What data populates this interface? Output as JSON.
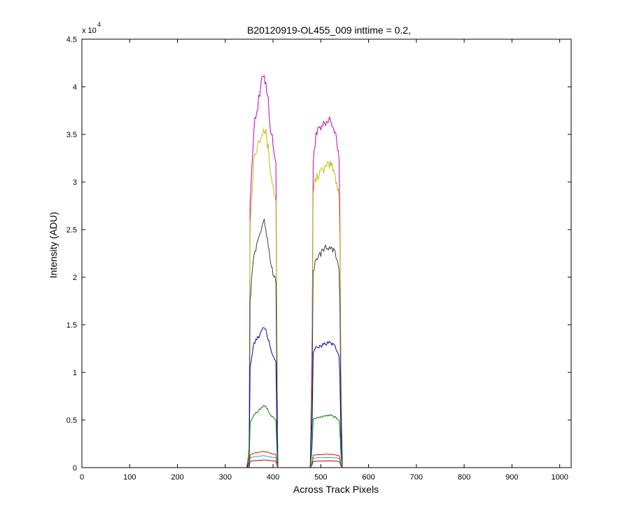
{
  "chart_data": {
    "type": "line",
    "title": "B20120919-OL455_009 inttime = 0.2,",
    "xlabel": "Across Track Pixels",
    "ylabel": "Intensity (ADU)",
    "xlim": [
      0,
      1024
    ],
    "ylim": [
      0,
      45000
    ],
    "y_multiplier_base": "x 10",
    "y_multiplier_exp": "4",
    "x_ticks": [
      0,
      100,
      200,
      300,
      400,
      500,
      600,
      700,
      800,
      900,
      1000
    ],
    "x_tick_labels": [
      "0",
      "100",
      "200",
      "300",
      "400",
      "500",
      "600",
      "700",
      "800",
      "900",
      "1000"
    ],
    "y_ticks": [
      0,
      5000,
      10000,
      15000,
      20000,
      25000,
      30000,
      35000,
      40000,
      45000
    ],
    "y_tick_labels": [
      "0",
      "0.5",
      "1",
      "1.5",
      "2",
      "2.5",
      "3",
      "3.5",
      "4",
      "4.5"
    ],
    "grid": false,
    "legend": "none",
    "series": [
      {
        "color": "#bf00bf",
        "x": [
          0,
          320,
          345,
          350,
          352,
          355,
          360,
          370,
          380,
          385,
          390,
          395,
          400,
          406,
          408,
          410,
          415,
          478,
          482,
          484,
          486,
          490,
          500,
          510,
          520,
          525,
          530,
          535,
          538,
          540,
          542,
          545,
          560,
          1024
        ],
        "y": [
          0,
          0,
          0,
          2000,
          28000,
          30500,
          36000,
          38500,
          41500,
          40500,
          38500,
          35500,
          34000,
          32000,
          14000,
          0,
          0,
          0,
          15000,
          32000,
          33500,
          35000,
          35500,
          36000,
          36500,
          36000,
          35000,
          33500,
          33000,
          26000,
          10000,
          0,
          0,
          0
        ]
      },
      {
        "color": "#bfbf00",
        "x": [
          0,
          320,
          345,
          350,
          352,
          355,
          360,
          370,
          380,
          385,
          390,
          395,
          400,
          406,
          408,
          410,
          415,
          478,
          482,
          484,
          486,
          490,
          500,
          510,
          520,
          525,
          530,
          535,
          538,
          540,
          542,
          545,
          560,
          1024
        ],
        "y": [
          0,
          0,
          0,
          1800,
          25500,
          28000,
          32500,
          34500,
          35800,
          35000,
          33500,
          31000,
          29500,
          28000,
          12500,
          0,
          0,
          0,
          13000,
          29000,
          29500,
          30500,
          31000,
          31500,
          31800,
          31500,
          30500,
          29500,
          29000,
          23500,
          9000,
          0,
          0,
          0
        ]
      },
      {
        "color": "#404040",
        "x": [
          0,
          320,
          345,
          350,
          352,
          355,
          360,
          370,
          380,
          385,
          390,
          395,
          400,
          406,
          408,
          410,
          415,
          478,
          482,
          484,
          486,
          490,
          500,
          510,
          520,
          525,
          530,
          535,
          538,
          540,
          542,
          545,
          560,
          1024
        ],
        "y": [
          0,
          0,
          0,
          1200,
          17500,
          19500,
          22500,
          24000,
          26000,
          25000,
          23500,
          21500,
          20500,
          19500,
          8500,
          0,
          0,
          0,
          9500,
          20500,
          21000,
          22000,
          22500,
          23000,
          23200,
          23000,
          22500,
          21500,
          21000,
          17000,
          6500,
          0,
          0,
          0
        ]
      },
      {
        "color": "#0000bf",
        "x": [
          0,
          320,
          345,
          350,
          352,
          355,
          360,
          370,
          380,
          385,
          390,
          395,
          400,
          406,
          408,
          410,
          415,
          478,
          482,
          484,
          486,
          490,
          500,
          510,
          520,
          525,
          530,
          535,
          538,
          540,
          542,
          545,
          560,
          1024
        ],
        "y": [
          0,
          0,
          0,
          600,
          10500,
          11500,
          13000,
          13800,
          14700,
          14300,
          13500,
          12500,
          11800,
          11200,
          4800,
          0,
          0,
          0,
          5200,
          12000,
          12300,
          12600,
          12800,
          13000,
          13100,
          12900,
          12600,
          12100,
          11800,
          9500,
          3500,
          0,
          0,
          0
        ]
      },
      {
        "color": "#008000",
        "x": [
          0,
          320,
          345,
          350,
          352,
          355,
          360,
          370,
          380,
          385,
          390,
          395,
          400,
          406,
          408,
          410,
          415,
          478,
          482,
          484,
          486,
          490,
          500,
          510,
          520,
          525,
          530,
          535,
          538,
          540,
          542,
          545,
          560,
          1024
        ],
        "y": [
          0,
          0,
          0,
          300,
          4700,
          5000,
          5600,
          6000,
          6500,
          6400,
          6000,
          5500,
          5300,
          5000,
          2200,
          0,
          0,
          0,
          2300,
          5000,
          5100,
          5200,
          5300,
          5400,
          5500,
          5400,
          5300,
          5100,
          5000,
          4000,
          1500,
          0,
          0,
          0
        ]
      },
      {
        "color": "#ff0000",
        "x": [
          0,
          320,
          345,
          350,
          352,
          355,
          360,
          370,
          380,
          385,
          390,
          395,
          400,
          406,
          408,
          410,
          415,
          478,
          482,
          484,
          486,
          490,
          500,
          510,
          520,
          525,
          530,
          535,
          538,
          540,
          542,
          545,
          560,
          1024
        ],
        "y": [
          0,
          0,
          0,
          100,
          1300,
          1400,
          1500,
          1600,
          1700,
          1650,
          1600,
          1500,
          1450,
          1400,
          600,
          0,
          0,
          0,
          650,
          1300,
          1320,
          1350,
          1380,
          1400,
          1400,
          1380,
          1350,
          1300,
          1280,
          1000,
          400,
          0,
          0,
          0
        ]
      },
      {
        "color": "#00bfbf",
        "x": [
          0,
          320,
          345,
          350,
          352,
          355,
          360,
          370,
          380,
          385,
          390,
          395,
          400,
          406,
          408,
          410,
          415,
          478,
          482,
          484,
          486,
          490,
          500,
          510,
          520,
          525,
          530,
          535,
          538,
          540,
          542,
          545,
          560,
          1024
        ],
        "y": [
          0,
          0,
          0,
          80,
          1000,
          1050,
          1150,
          1200,
          1250,
          1220,
          1180,
          1120,
          1080,
          1050,
          450,
          0,
          0,
          0,
          480,
          1000,
          1010,
          1030,
          1050,
          1070,
          1070,
          1060,
          1040,
          1000,
          980,
          780,
          300,
          0,
          0,
          0
        ]
      },
      {
        "color": "#bf0000",
        "x": [
          0,
          320,
          345,
          350,
          352,
          355,
          360,
          370,
          380,
          385,
          390,
          395,
          400,
          406,
          408,
          410,
          415,
          478,
          482,
          484,
          486,
          490,
          500,
          510,
          520,
          525,
          530,
          535,
          538,
          540,
          542,
          545,
          560,
          1024
        ],
        "y": [
          0,
          0,
          0,
          50,
          650,
          680,
          720,
          760,
          800,
          780,
          760,
          730,
          700,
          680,
          300,
          0,
          0,
          0,
          320,
          650,
          660,
          670,
          690,
          700,
          700,
          690,
          680,
          660,
          650,
          520,
          200,
          0,
          0,
          0
        ]
      }
    ]
  }
}
